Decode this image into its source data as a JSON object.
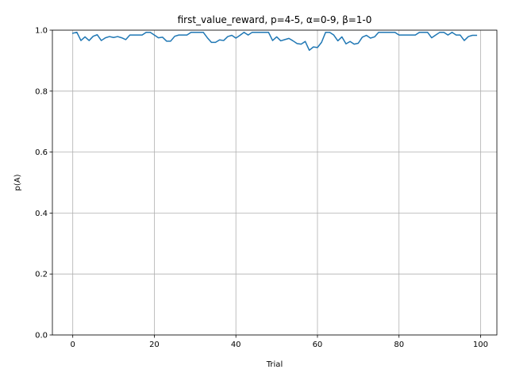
{
  "chart_data": {
    "type": "line",
    "title": "first_value_reward, p=4-5, α=0-9, β=1-0",
    "xlabel": "Trial",
    "ylabel": "p(A)",
    "xlim": [
      -5,
      104
    ],
    "ylim": [
      0,
      1
    ],
    "xticks": [
      0,
      20,
      40,
      60,
      80,
      100
    ],
    "yticks": [
      0.0,
      0.2,
      0.4,
      0.6,
      0.8,
      1.0
    ],
    "xtick_labels": [
      "0",
      "20",
      "40",
      "60",
      "80",
      "100"
    ],
    "ytick_labels": [
      "0.0",
      "0.2",
      "0.4",
      "0.6",
      "0.8",
      "1.0"
    ],
    "grid": true,
    "line_color": "#1f77b4",
    "grid_color": "#b0b0b0",
    "series": [
      {
        "x": [
          0,
          1,
          2,
          3,
          4,
          5,
          6,
          7,
          8,
          9,
          10,
          11,
          12,
          13,
          14,
          15,
          16,
          17,
          18,
          19,
          20,
          21,
          22,
          23,
          24,
          25,
          26,
          27,
          28,
          29,
          30,
          31,
          32,
          33,
          34,
          35,
          36,
          37,
          38,
          39,
          40,
          41,
          42,
          43,
          44,
          45,
          46,
          47,
          48,
          49,
          50,
          51,
          52,
          53,
          54,
          55,
          56,
          57,
          58,
          59,
          60,
          61,
          62,
          63,
          64,
          65,
          66,
          67,
          68,
          69,
          70,
          71,
          72,
          73,
          74,
          75,
          76,
          77,
          78,
          79,
          80,
          81,
          82,
          83,
          84,
          85,
          86,
          87,
          88,
          89,
          90,
          91,
          92,
          93,
          94,
          95,
          96,
          97,
          98,
          99
        ],
        "values": [
          0.99,
          0.993,
          0.966,
          0.978,
          0.966,
          0.98,
          0.985,
          0.966,
          0.975,
          0.979,
          0.976,
          0.979,
          0.975,
          0.969,
          0.984,
          0.984,
          0.984,
          0.984,
          0.993,
          0.993,
          0.984,
          0.975,
          0.977,
          0.964,
          0.964,
          0.98,
          0.984,
          0.984,
          0.984,
          0.993,
          0.993,
          0.993,
          0.993,
          0.975,
          0.96,
          0.96,
          0.968,
          0.966,
          0.979,
          0.983,
          0.974,
          0.983,
          0.993,
          0.984,
          0.993,
          0.993,
          0.993,
          0.993,
          0.993,
          0.966,
          0.978,
          0.965,
          0.969,
          0.973,
          0.965,
          0.956,
          0.954,
          0.963,
          0.934,
          0.945,
          0.943,
          0.96,
          0.993,
          0.993,
          0.984,
          0.965,
          0.978,
          0.955,
          0.963,
          0.954,
          0.957,
          0.977,
          0.983,
          0.974,
          0.978,
          0.993,
          0.993,
          0.993,
          0.993,
          0.993,
          0.984,
          0.984,
          0.984,
          0.984,
          0.984,
          0.993,
          0.993,
          0.993,
          0.975,
          0.984,
          0.993,
          0.993,
          0.984,
          0.993,
          0.984,
          0.984,
          0.966,
          0.979,
          0.983,
          0.983
        ]
      }
    ]
  }
}
